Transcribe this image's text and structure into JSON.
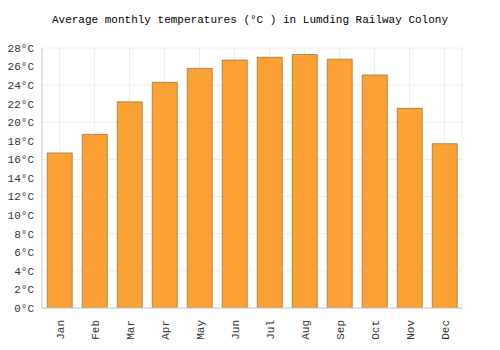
{
  "chart_data": {
    "type": "bar",
    "title": "Average monthly temperatures (°C ) in Lumding Railway Colony",
    "categories": [
      "Jan",
      "Feb",
      "Mar",
      "Apr",
      "May",
      "Jun",
      "Jul",
      "Aug",
      "Sep",
      "Oct",
      "Nov",
      "Dec"
    ],
    "values": [
      16.7,
      18.7,
      22.2,
      24.3,
      25.8,
      26.7,
      27.0,
      27.3,
      26.8,
      25.1,
      21.5,
      17.7
    ],
    "color": "#fca235",
    "ylim": [
      0,
      28
    ],
    "yticks": [
      {
        "value": 0,
        "label": "0°C"
      },
      {
        "value": 2,
        "label": "2°C"
      },
      {
        "value": 4,
        "label": "4°C"
      },
      {
        "value": 6,
        "label": "6°C"
      },
      {
        "value": 8,
        "label": "8°C"
      },
      {
        "value": 10,
        "label": "10°C"
      },
      {
        "value": 12,
        "label": "12°C"
      },
      {
        "value": 14,
        "label": "14°C"
      },
      {
        "value": 16,
        "label": "16°C"
      },
      {
        "value": 18,
        "label": "18°C"
      },
      {
        "value": 20,
        "label": "20°C"
      },
      {
        "value": 22,
        "label": "22°C"
      },
      {
        "value": 24,
        "label": "24°C"
      },
      {
        "value": 26,
        "label": "26°C"
      },
      {
        "value": 28,
        "label": "28°C"
      }
    ],
    "grid": true
  }
}
